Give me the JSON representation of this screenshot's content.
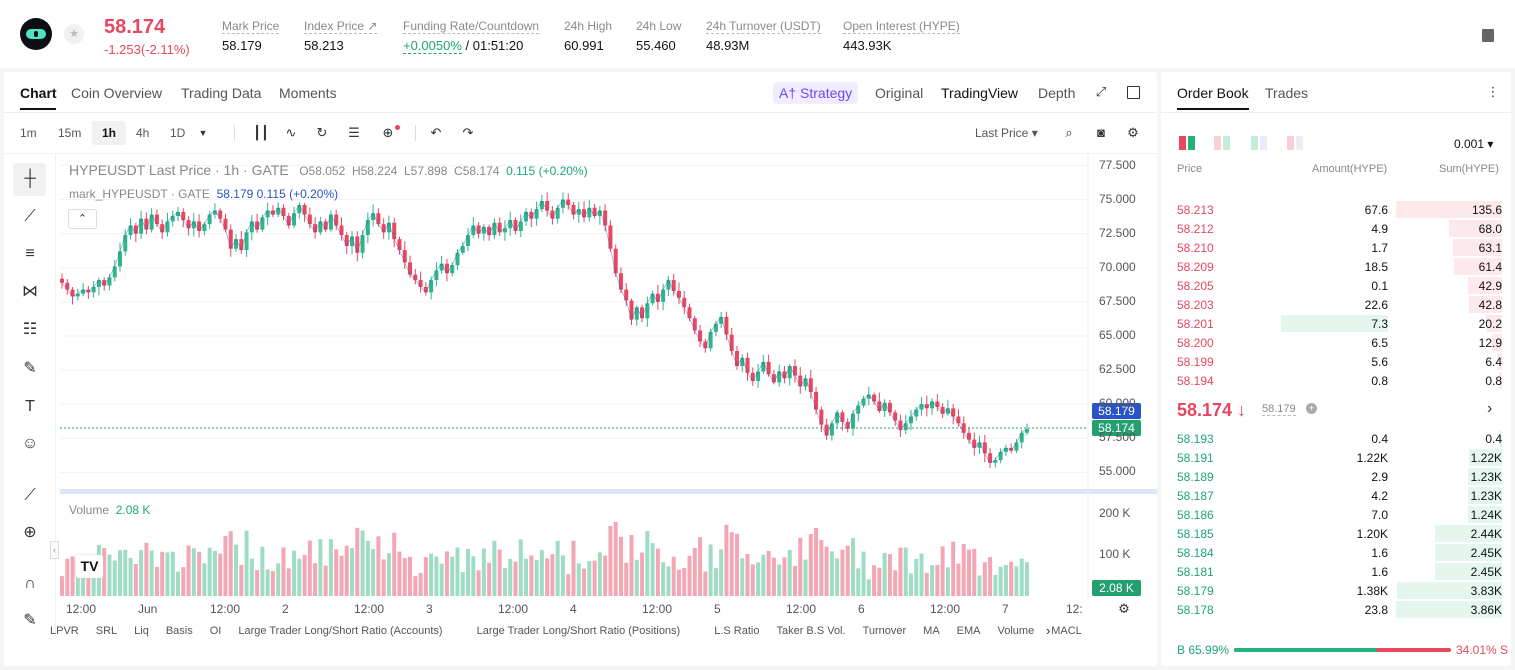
{
  "header": {
    "last_price": "58.174",
    "change": "-1.253(-2.11%)",
    "stats": [
      {
        "label": "Mark Price",
        "value": "58.179"
      },
      {
        "label": "Index Price ↗",
        "value": "58.213"
      },
      {
        "label": "Funding Rate/Countdown",
        "value_green": "+0.0050%",
        "value_rest": " / 01:51:20"
      },
      {
        "label": "24h High",
        "value": "60.991"
      },
      {
        "label": "24h Low",
        "value": "55.460"
      },
      {
        "label": "24h Turnover (USDT)",
        "value": "48.93M"
      },
      {
        "label": "Open Interest (HYPE)",
        "value": "443.93K"
      }
    ]
  },
  "chart_tabs": [
    "Chart",
    "Coin Overview",
    "Trading Data",
    "Moments"
  ],
  "view_tabs": {
    "strategy": "A† Strategy",
    "original": "Original",
    "tradingview": "TradingView",
    "depth": "Depth"
  },
  "timeframes": [
    "1m",
    "15m",
    "1h",
    "4h",
    "1D"
  ],
  "price_type": "Last Price ▾",
  "legend": {
    "line1_prefix": "HYPEUSDT Last Price · 1h · GATE",
    "o": "O58.052",
    "h": "H58.224",
    "l": "L57.898",
    "c": "C58.174",
    "chg": "0.115 (+0.20%)",
    "line2_prefix": "mark_HYPEUSDT · GATE",
    "line2_vals": "58.179  0.115  (+0.20%)",
    "collapse": "⌃"
  },
  "volume_legend": {
    "label": "Volume",
    "value": "2.08 K"
  },
  "price_axis": [
    "77.500",
    "75.000",
    "72.500",
    "70.000",
    "67.500",
    "65.000",
    "62.500",
    "60.000",
    "57.500",
    "55.000"
  ],
  "price_tags": {
    "mark": "58.179",
    "last": "58.174"
  },
  "volume_axis": [
    "200 K",
    "100 K"
  ],
  "volume_tag": "2.08 K",
  "x_axis": [
    {
      "label": "12:00",
      "x": 80
    },
    {
      "label": "Jun",
      "x": 152
    },
    {
      "label": "12:00",
      "x": 224
    },
    {
      "label": "2",
      "x": 296
    },
    {
      "label": "12:00",
      "x": 368
    },
    {
      "label": "3",
      "x": 440
    },
    {
      "label": "12:00",
      "x": 512
    },
    {
      "label": "4",
      "x": 584
    },
    {
      "label": "12:00",
      "x": 656
    },
    {
      "label": "5",
      "x": 728
    },
    {
      "label": "12:00",
      "x": 800
    },
    {
      "label": "6",
      "x": 872
    },
    {
      "label": "12:00",
      "x": 944
    },
    {
      "label": "7",
      "x": 1016
    },
    {
      "label": "12:",
      "x": 1080
    }
  ],
  "bottom_indicators": [
    "LPVR",
    "SRL",
    "Liq",
    "Basis",
    "OI",
    "Large Trader Long/Short Ratio (Accounts)",
    "Large Trader Long/Short Ratio (Positions)",
    "L.S Ratio",
    "Taker B.S Vol.",
    "Turnover",
    "MA",
    "EMA",
    "Volume",
    "MACL"
  ],
  "order_book": {
    "tabs": [
      "Order Book",
      "Trades"
    ],
    "precision": "0.001 ▾",
    "headers": [
      "Price",
      "Amount(HYPE)",
      "Sum(HYPE)"
    ],
    "asks": [
      {
        "price": "58.213",
        "amount": "67.6",
        "sum": "135.6"
      },
      {
        "price": "58.212",
        "amount": "4.9",
        "sum": "68.0"
      },
      {
        "price": "58.210",
        "amount": "1.7",
        "sum": "63.1"
      },
      {
        "price": "58.209",
        "amount": "18.5",
        "sum": "61.4"
      },
      {
        "price": "58.205",
        "amount": "0.1",
        "sum": "42.9"
      },
      {
        "price": "58.203",
        "amount": "22.6",
        "sum": "42.8"
      },
      {
        "price": "58.201",
        "amount": "7.3",
        "sum": "20.2"
      },
      {
        "price": "58.200",
        "amount": "6.5",
        "sum": "12.9"
      },
      {
        "price": "58.199",
        "amount": "5.6",
        "sum": "6.4"
      },
      {
        "price": "58.194",
        "amount": "0.8",
        "sum": "0.8"
      }
    ],
    "mid_price": "58.174 ↓",
    "mid_mark": "58.179",
    "bids": [
      {
        "price": "58.193",
        "amount": "0.4",
        "sum": "0.4"
      },
      {
        "price": "58.191",
        "amount": "1.22K",
        "sum": "1.22K"
      },
      {
        "price": "58.189",
        "amount": "2.9",
        "sum": "1.23K"
      },
      {
        "price": "58.187",
        "amount": "4.2",
        "sum": "1.23K"
      },
      {
        "price": "58.186",
        "amount": "7.0",
        "sum": "1.24K"
      },
      {
        "price": "58.185",
        "amount": "1.20K",
        "sum": "2.44K"
      },
      {
        "price": "58.184",
        "amount": "1.6",
        "sum": "2.45K"
      },
      {
        "price": "58.181",
        "amount": "1.6",
        "sum": "2.45K"
      },
      {
        "price": "58.179",
        "amount": "1.38K",
        "sum": "3.83K"
      },
      {
        "price": "58.178",
        "amount": "23.8",
        "sum": "3.86K"
      }
    ],
    "buy_ratio": "B 65.99%",
    "sell_ratio": "34.01% S",
    "buy_fraction": 0.6599
  },
  "chart_data": {
    "type": "candlestick",
    "series_name": "HYPEUSDT Last Price · 1h · GATE",
    "ylim": [
      53.5,
      78.5
    ],
    "closes": [
      68.9,
      68.4,
      67.9,
      68.1,
      68.4,
      68.2,
      68.6,
      69.1,
      68.7,
      69.3,
      70.1,
      71.2,
      72.4,
      73.1,
      72.5,
      73.6,
      72.8,
      73.9,
      73.2,
      72.6,
      73.4,
      73.8,
      74.1,
      73.5,
      72.9,
      73.4,
      72.7,
      73.2,
      73.9,
      74.2,
      73.6,
      72.8,
      71.4,
      72.1,
      71.3,
      72.6,
      73.4,
      72.8,
      73.7,
      74.2,
      73.9,
      74.4,
      73.8,
      73.1,
      74.0,
      74.6,
      73.9,
      73.2,
      72.6,
      73.4,
      72.8,
      73.9,
      73.1,
      72.4,
      71.6,
      72.3,
      71.1,
      72.4,
      73.5,
      74.0,
      73.2,
      72.6,
      73.3,
      72.1,
      71.3,
      70.4,
      69.5,
      69.1,
      68.6,
      68.2,
      69.1,
      69.8,
      70.3,
      69.6,
      70.2,
      71.1,
      71.6,
      72.4,
      73.1,
      72.5,
      73.0,
      72.4,
      73.3,
      72.6,
      72.9,
      73.5,
      72.7,
      73.4,
      74.1,
      73.6,
      74.3,
      74.9,
      74.2,
      73.6,
      74.4,
      75.0,
      74.6,
      73.9,
      74.3,
      73.7,
      74.4,
      73.8,
      74.2,
      73.1,
      71.4,
      69.6,
      68.4,
      67.6,
      66.2,
      67.1,
      66.3,
      67.4,
      68.1,
      67.5,
      68.4,
      69.1,
      68.3,
      67.8,
      67.1,
      66.3,
      65.4,
      64.6,
      64.1,
      65.3,
      65.9,
      66.4,
      65.1,
      63.9,
      62.8,
      63.4,
      62.3,
      61.7,
      62.4,
      63.1,
      62.2,
      61.6,
      62.4,
      61.9,
      62.8,
      62.1,
      61.3,
      61.9,
      60.9,
      59.6,
      58.5,
      57.7,
      58.6,
      59.4,
      58.7,
      58.2,
      59.3,
      59.9,
      60.4,
      60.7,
      60.2,
      59.5,
      60.1,
      59.4,
      58.8,
      58.1,
      58.6,
      59.1,
      59.6,
      60.0,
      59.7,
      60.2,
      59.8,
      59.3,
      59.7,
      59.1,
      58.6,
      57.9,
      57.4,
      56.8,
      57.2,
      56.4,
      55.7,
      55.9,
      56.5,
      56.8,
      56.6,
      57.2,
      57.9,
      58.174
    ]
  }
}
